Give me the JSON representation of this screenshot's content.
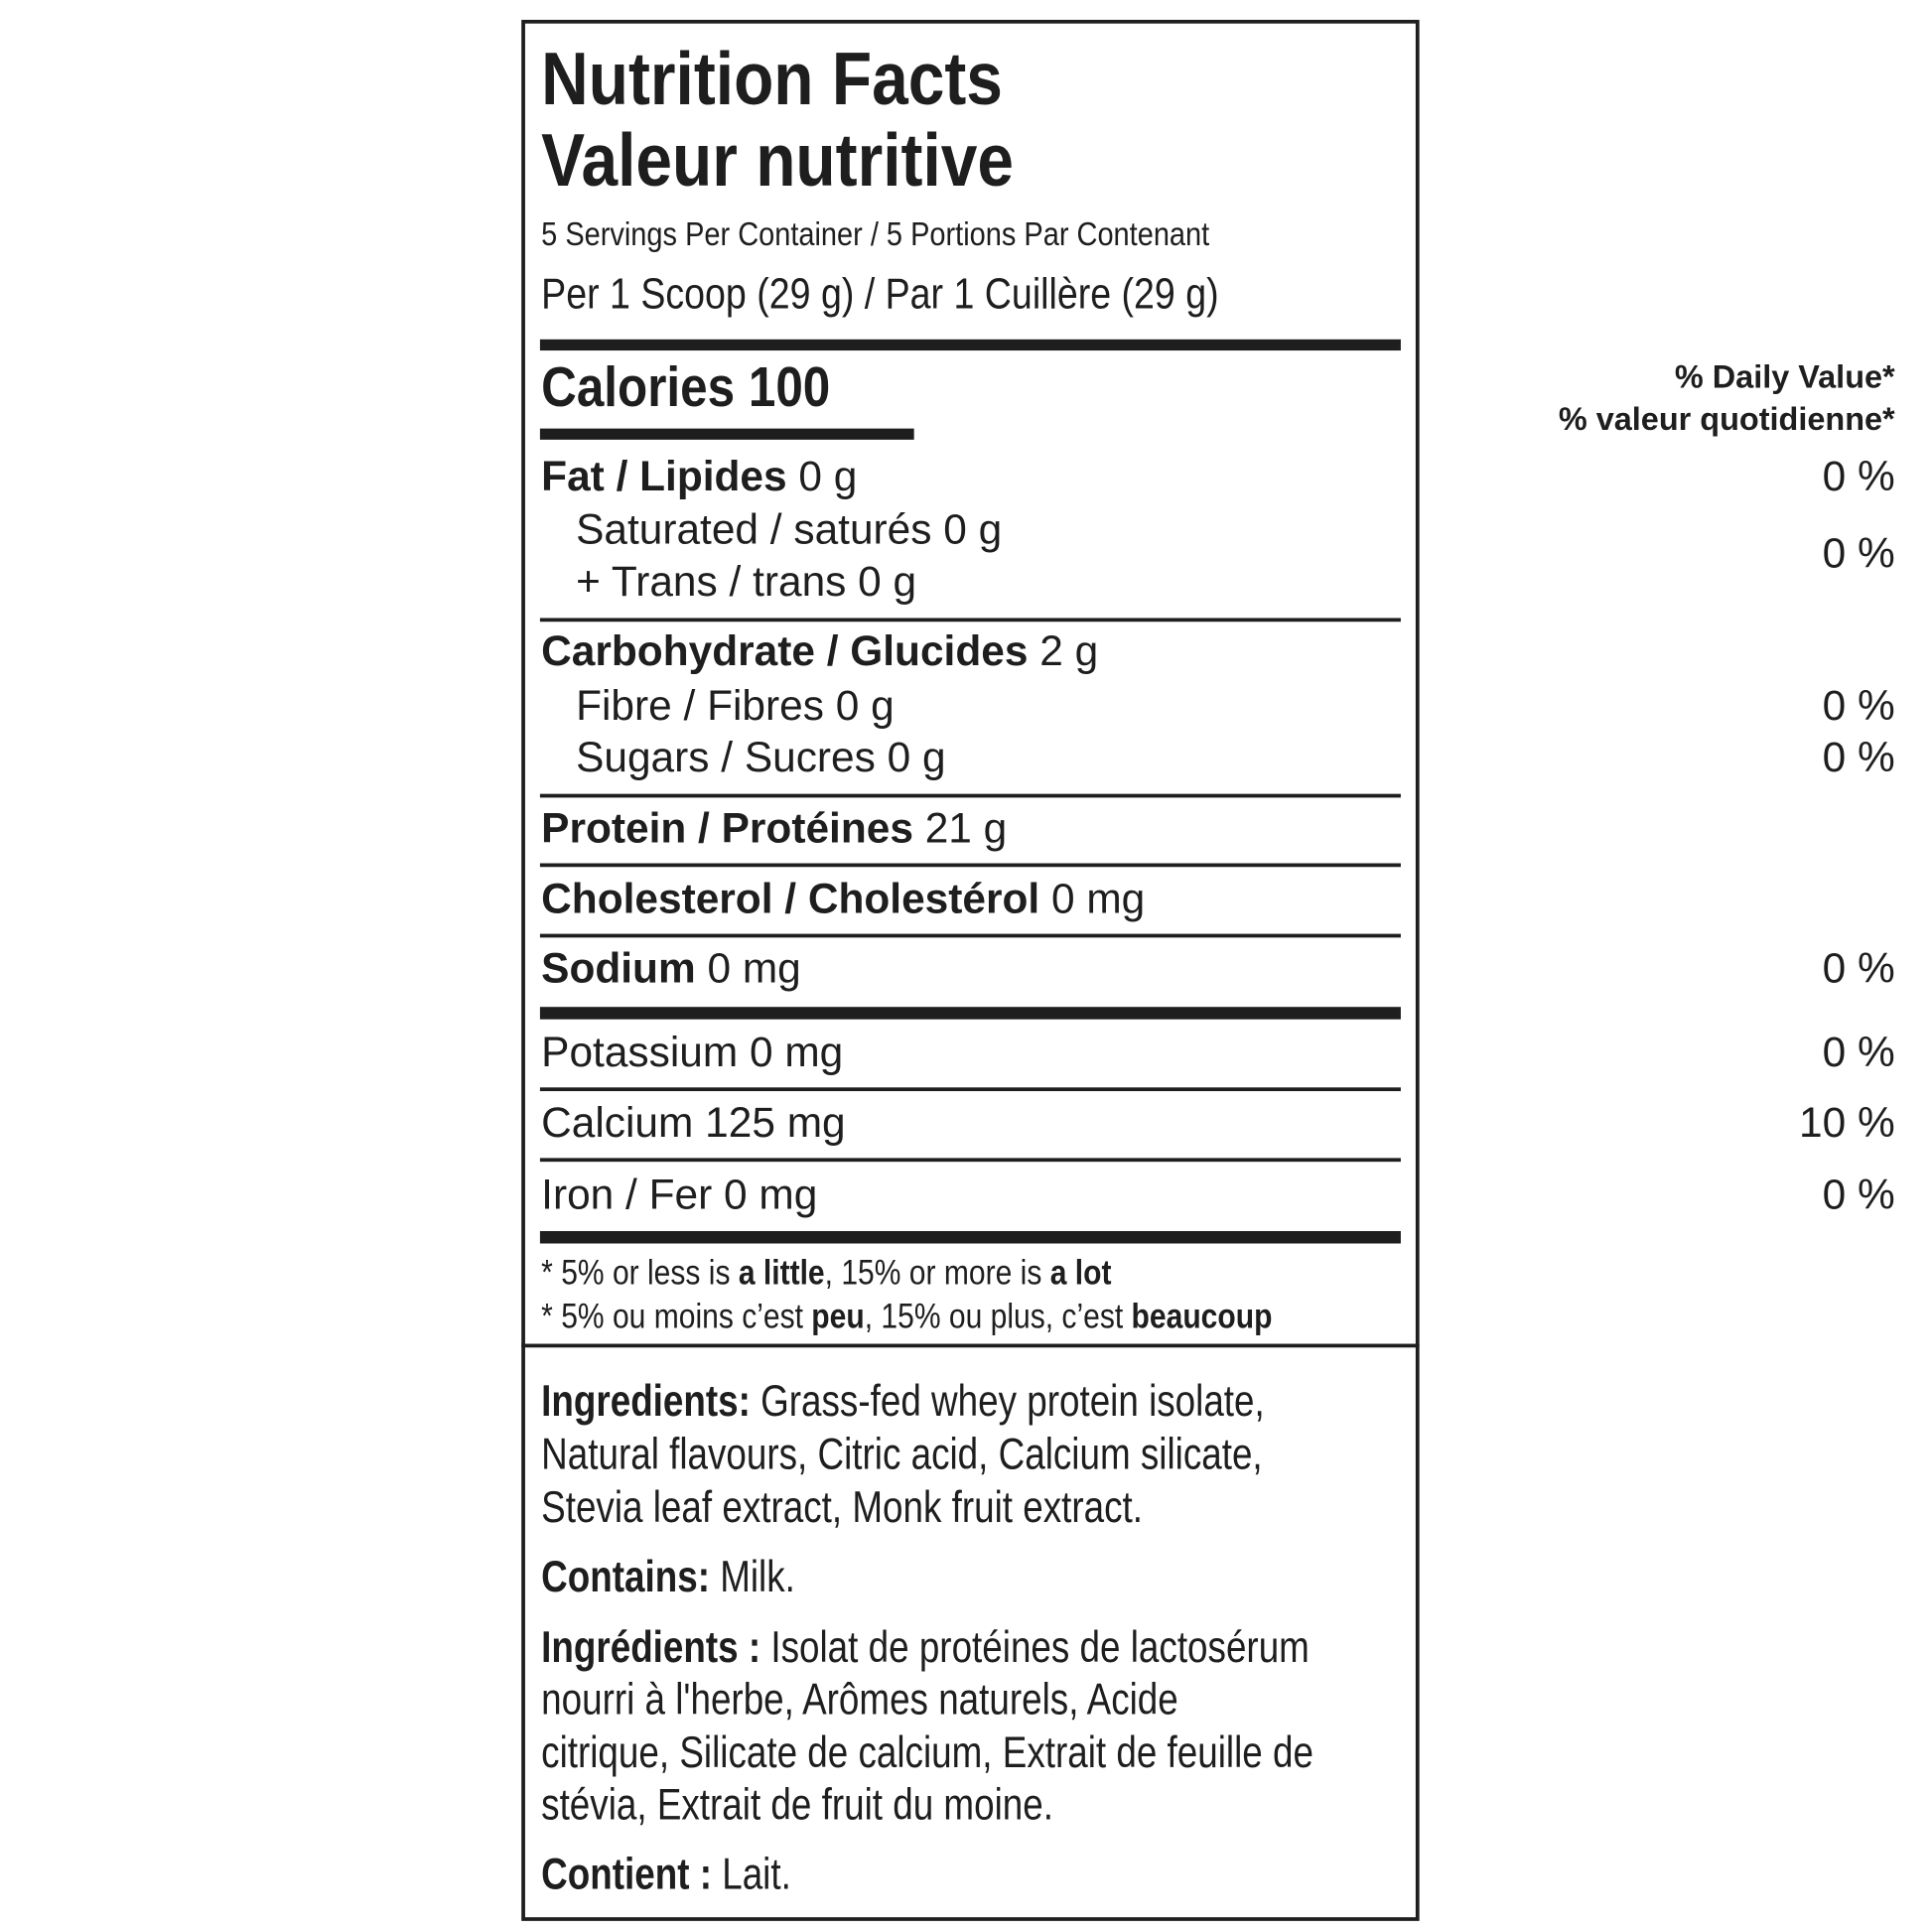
{
  "title_en": "Nutrition Facts",
  "title_fr": "Valeur nutritive",
  "servings": "5 Servings Per Container / 5 Portions Par Contenant",
  "serving_size": "Per 1 Scoop (29 g) / Par 1 Cuillère (29 g)",
  "calories": {
    "label": "Calories",
    "value": "100"
  },
  "daily_value_en": "% Daily Value*",
  "daily_value_fr": "% valeur quotidienne*",
  "nutrients": {
    "fat": {
      "label": "Fat / Lipides",
      "amount": "0 g",
      "dv": "0 %"
    },
    "saturated": {
      "label": "Saturated / saturés",
      "amount": "0 g"
    },
    "trans": {
      "label": "+ Trans / trans",
      "amount": "0 g",
      "dv": "0 %"
    },
    "carbohydrate": {
      "label": "Carbohydrate / Glucides",
      "amount": "2 g"
    },
    "fibre": {
      "label": "Fibre / Fibres",
      "amount": "0 g",
      "dv": "0 %"
    },
    "sugars": {
      "label": "Sugars / Sucres",
      "amount": "0 g",
      "dv": "0 %"
    },
    "protein": {
      "label": "Protein / Protéines",
      "amount": "21 g"
    },
    "cholesterol": {
      "label": "Cholesterol / Cholestérol",
      "amount": "0 mg"
    },
    "sodium": {
      "label": "Sodium",
      "amount": "0 mg",
      "dv": "0 %"
    },
    "potassium": {
      "label": "Potassium 0 mg",
      "dv": "0 %"
    },
    "calcium": {
      "label": "Calcium 125 mg",
      "dv": "10 %"
    },
    "iron": {
      "label": "Iron / Fer 0 mg",
      "dv": "0 %"
    }
  },
  "footnote_en": {
    "p1": "* 5% or less is ",
    "b1": "a little",
    "p2": ", 15% or more is ",
    "b2": "a lot"
  },
  "footnote_fr": {
    "p1": "* 5% ou moins c’est ",
    "b1": "peu",
    "p2": ", 15% ou plus, c’est ",
    "b2": "beaucoup"
  },
  "ingredients_en": {
    "label": "Ingredients:",
    "lines": [
      " Grass-fed whey protein isolate,",
      "Natural flavours, Citric acid, Calcium silicate,",
      "Stevia leaf extract, Monk fruit extract."
    ]
  },
  "contains_en": {
    "label": "Contains:",
    "text": " Milk."
  },
  "ingredients_fr": {
    "label": "Ingrédients :",
    "lines": [
      " Isolat de protéines de lactosérum",
      "nourri à l'herbe, Arômes naturels, Acide",
      "citrique, Silicate de calcium, Extrait de feuille de",
      "stévia, Extrait de fruit du moine."
    ]
  },
  "contains_fr": {
    "label": "Contient :",
    "text": " Lait."
  }
}
